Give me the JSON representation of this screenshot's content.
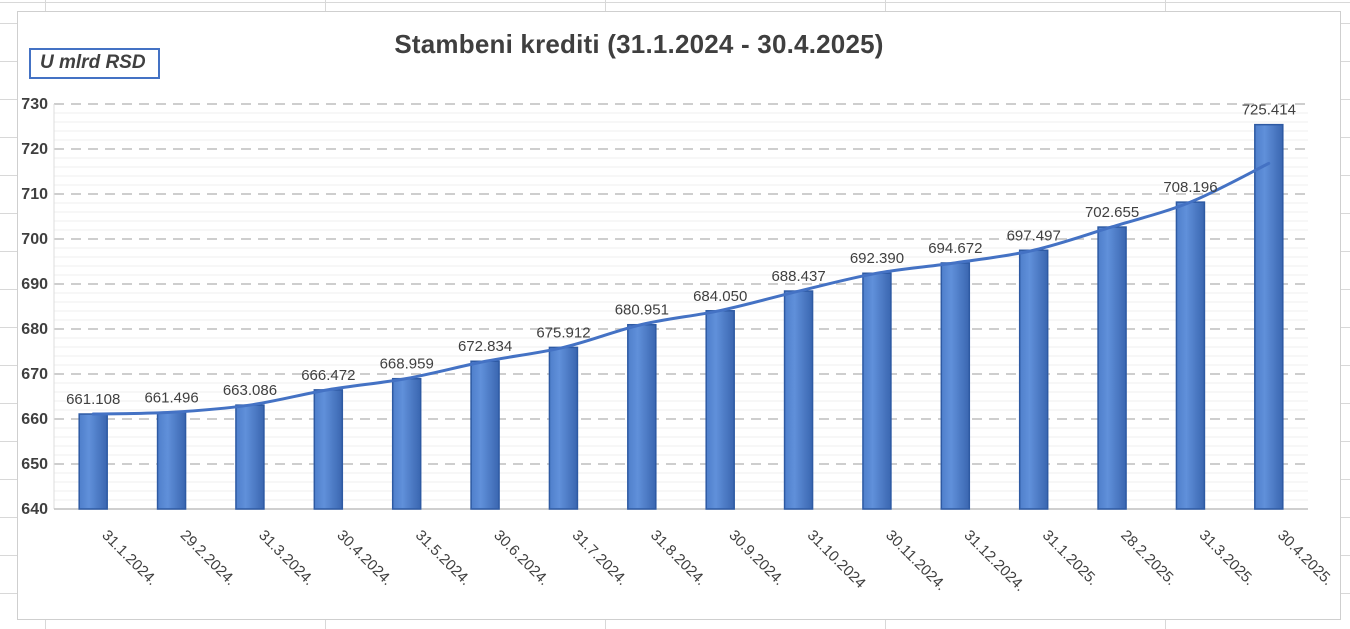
{
  "chart_data": {
    "type": "bar",
    "title": "Stambeni krediti (31.1.2024 - 30.4.2025)",
    "unit_label": "U mlrd RSD",
    "categories": [
      "31.1.2024.",
      "29.2.2024.",
      "31.3.2024.",
      "30.4.2024.",
      "31.5.2024.",
      "30.6.2024.",
      "31.7.2024.",
      "31.8.2024.",
      "30.9.2024.",
      "31.10.2024",
      "30.11.2024.",
      "31.12.2024.",
      "31.1.2025.",
      "28.2.2025.",
      "31.3.2025.",
      "30.4.2025."
    ],
    "values": [
      661.108,
      661.496,
      663.086,
      666.472,
      668.959,
      672.834,
      675.912,
      680.951,
      684.05,
      688.437,
      692.39,
      694.672,
      697.497,
      702.655,
      708.196,
      725.414
    ],
    "data_labels": [
      "661.108",
      "661.496",
      "663.086",
      "666.472",
      "668.959",
      "672.834",
      "675.912",
      "680.951",
      "684.050",
      "688.437",
      "692.390",
      "694.672",
      "697.497",
      "702.655",
      "708.196",
      "725.414"
    ],
    "trend_line": {
      "smooth": true,
      "estimated_values": [
        661.1,
        661.5,
        663.1,
        666.5,
        669.0,
        672.8,
        675.9,
        681.0,
        684.1,
        688.4,
        692.4,
        694.7,
        697.5,
        702.7,
        708.2,
        716.8
      ]
    },
    "ylabel": "",
    "xlabel": "",
    "ylim": [
      640,
      730
    ],
    "y_major_step": 10,
    "y_minor_step": 2,
    "y_tick_labels": [
      "640",
      "650",
      "660",
      "670",
      "680",
      "690",
      "700",
      "710",
      "720",
      "730"
    ],
    "grid": {
      "major": "dashed",
      "minor": "solid"
    },
    "legend": "none",
    "x_label_rotation_deg": 45,
    "colors": {
      "bar_fill_light": "#6090da",
      "bar_fill_mid": "#4f7fcb",
      "bar_fill_dark": "#3a66b0",
      "bar_border": "#2e5aa3",
      "trend_line": "#4472c4",
      "major_grid": "#c8c8c8",
      "minor_grid": "#efefef",
      "axis_line": "#bfbfbf",
      "text": "#3f3f3f",
      "unit_box_border": "#4472c4"
    }
  }
}
